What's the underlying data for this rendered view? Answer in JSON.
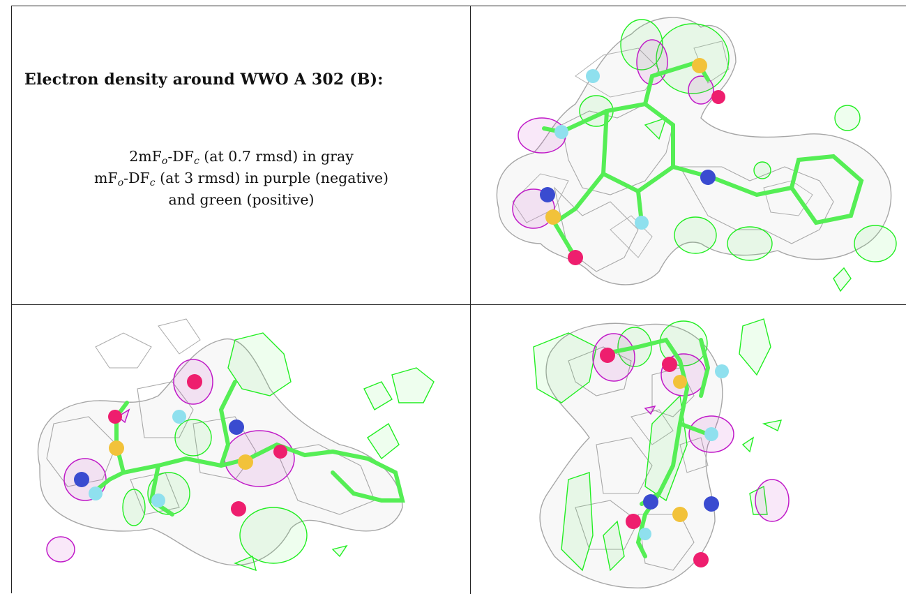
{
  "panel": {
    "title": "Electron density around WWO A 302 (B):",
    "caption": {
      "line1": {
        "a": "2mF",
        "sub1": "o",
        "b": "-DF",
        "sub2": "c",
        "c": " (at 0.7 rmsd) in gray"
      },
      "line2": {
        "a": "mF",
        "sub1": "o",
        "b": "-DF",
        "sub2": "c",
        "c": " (at 3 rmsd) in purple (negative)"
      },
      "line3": "and green (positive)"
    }
  },
  "colors": {
    "gray_mesh": "#9a9a9a",
    "negative_mesh": "#c01ac8",
    "positive_mesh": "#22ee22",
    "ligand_stick": "#55ee55",
    "nitrogen": "#3a4bd0",
    "oxygen": "#ee1e6e",
    "sulfur": "#f2c23a",
    "fluorine": "#8fe0ee"
  },
  "views": [
    {
      "name": "view-top-right"
    },
    {
      "name": "view-bottom-left"
    },
    {
      "name": "view-bottom-right"
    }
  ]
}
